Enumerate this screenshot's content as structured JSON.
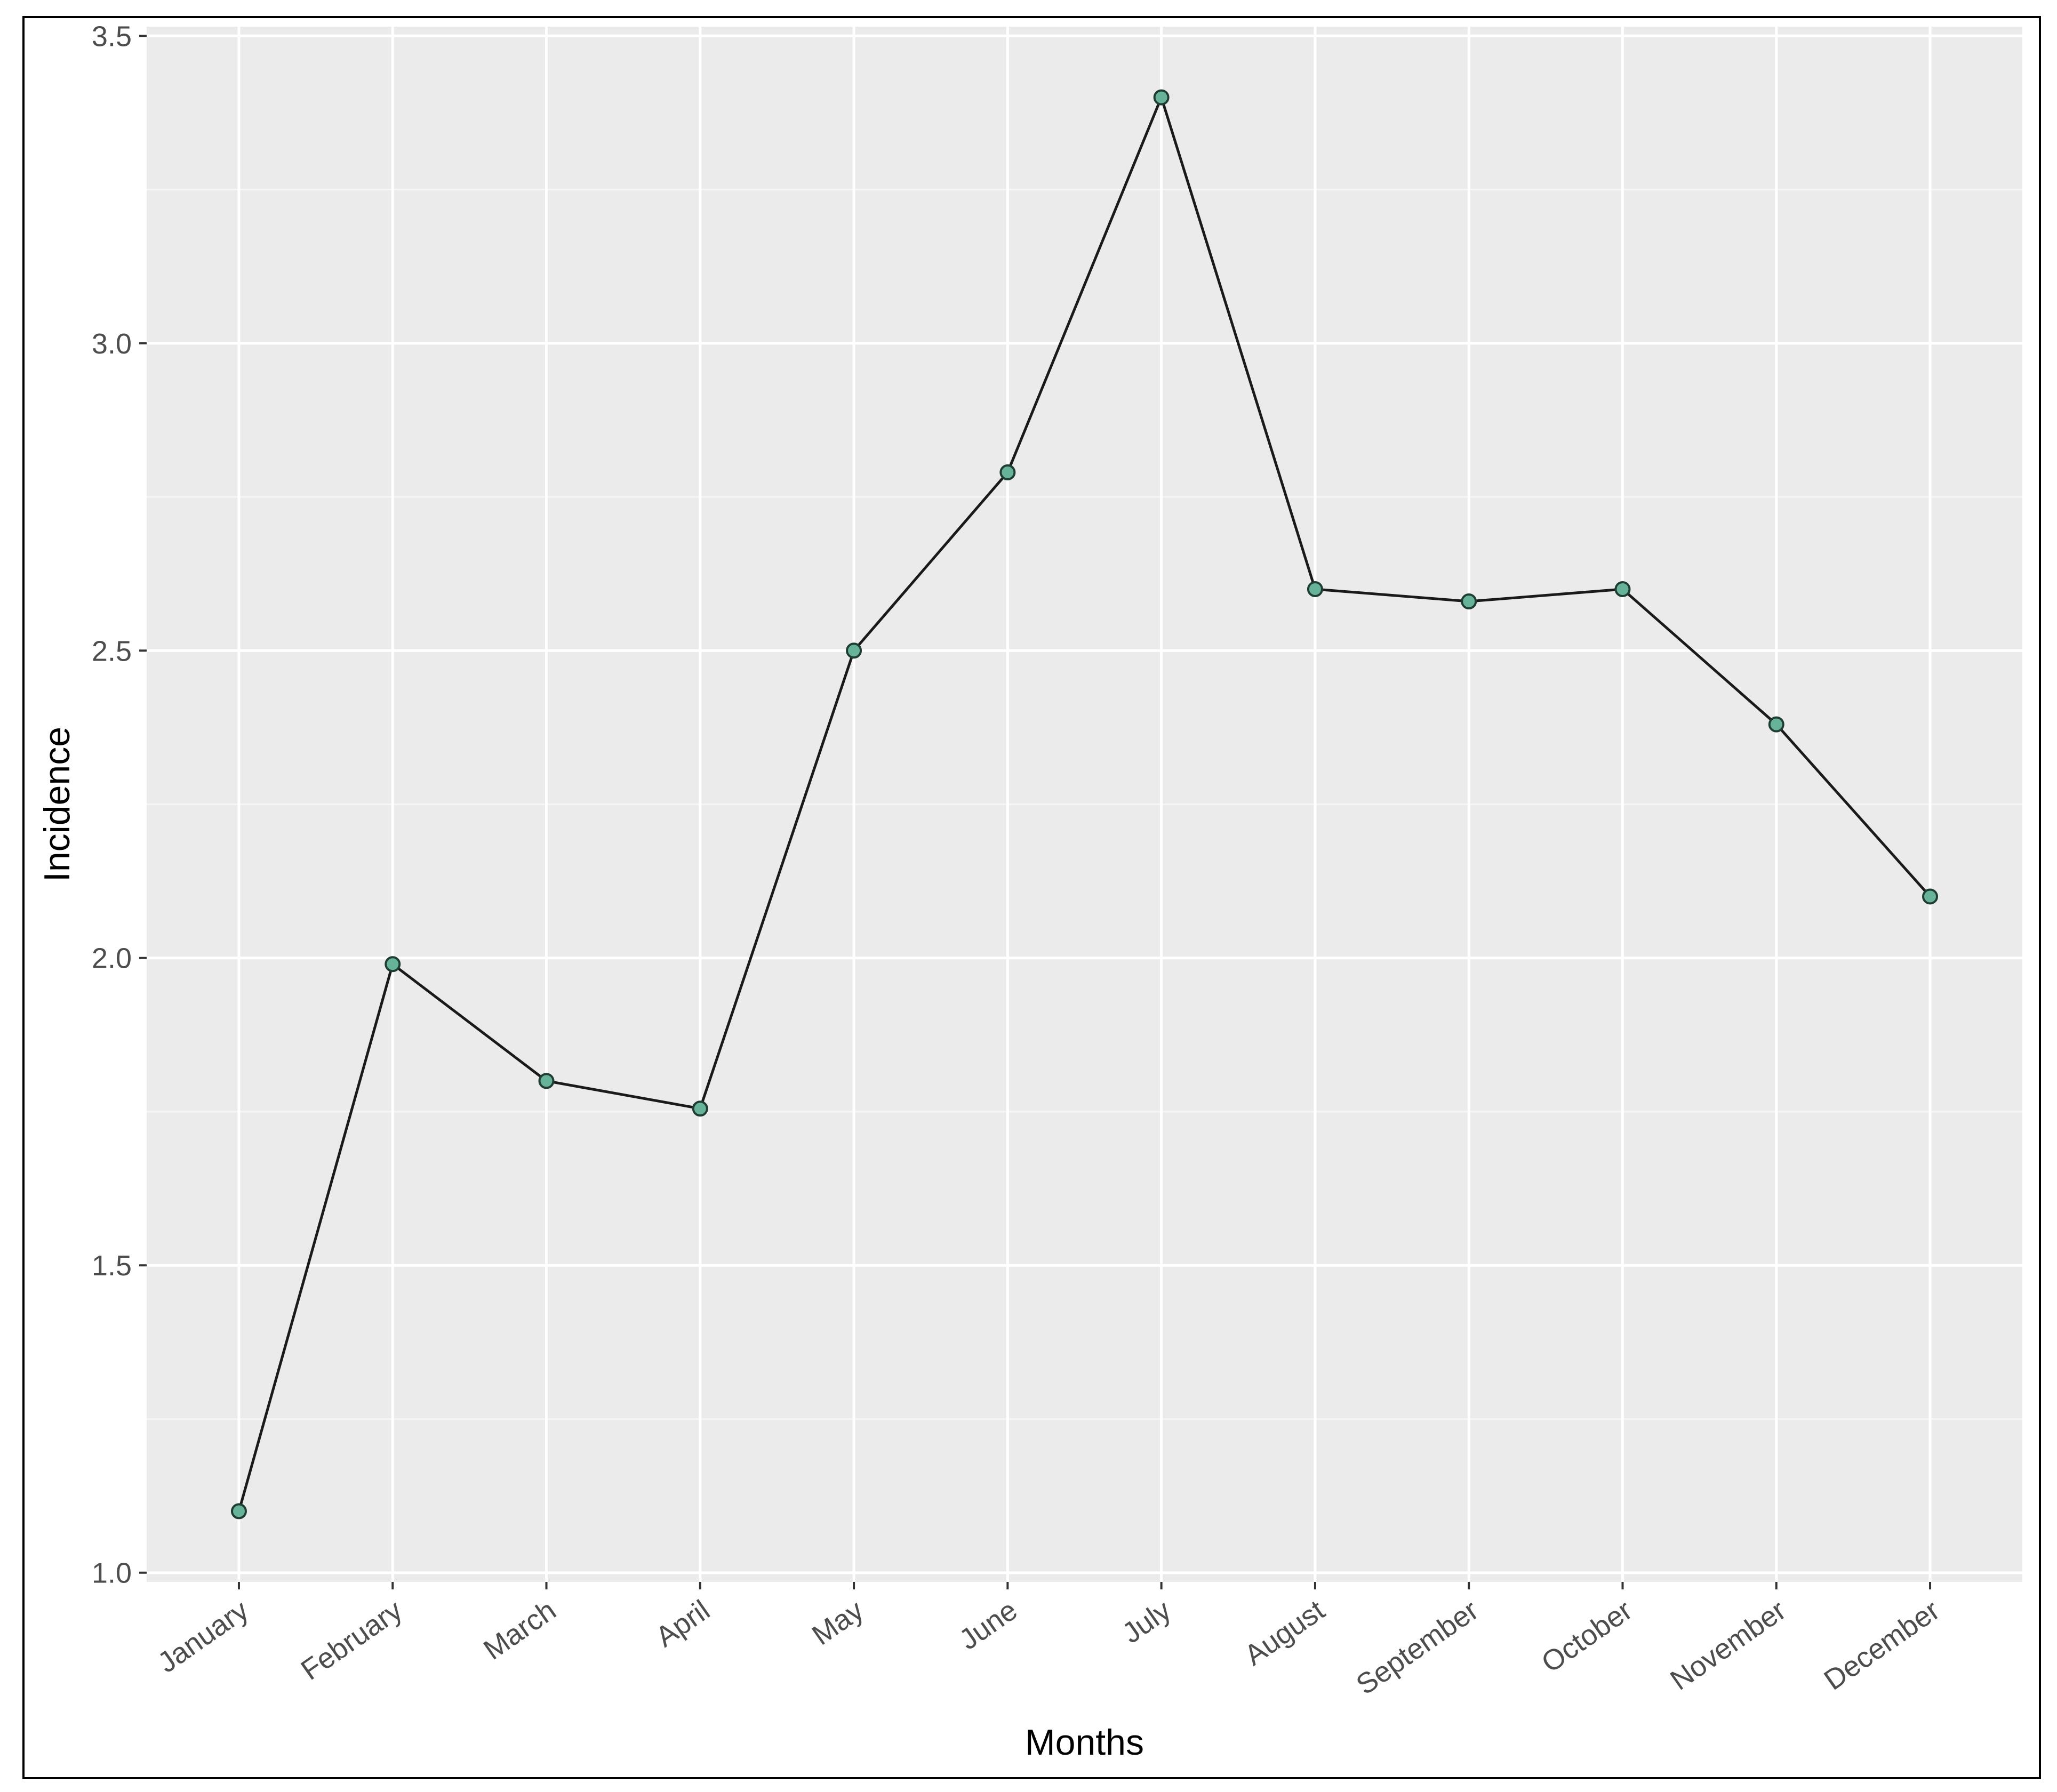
{
  "chart_data": {
    "type": "line",
    "title": "",
    "xlabel": "Months",
    "ylabel": "Incidence",
    "categories": [
      "January",
      "February",
      "March",
      "April",
      "May",
      "June",
      "July",
      "August",
      "September",
      "October",
      "November",
      "December"
    ],
    "series": [
      {
        "values": [
          1.1,
          1.99,
          1.8,
          1.755,
          2.5,
          2.79,
          3.4,
          2.6,
          2.58,
          2.6,
          2.38,
          2.1
        ]
      }
    ],
    "ylim": [
      0.985,
      3.515
    ],
    "y_ticks": [
      "1.0",
      "1.5",
      "2.0",
      "2.5",
      "3.0",
      "3.5"
    ],
    "grid": true,
    "colors": {
      "panel_background": "#ebebeb",
      "grid_major": "#ffffff",
      "grid_minor": "#f5f5f5",
      "line": "#1a1a1a",
      "marker_fill": "#66b39a",
      "marker_stroke": "#1f3d33"
    }
  }
}
